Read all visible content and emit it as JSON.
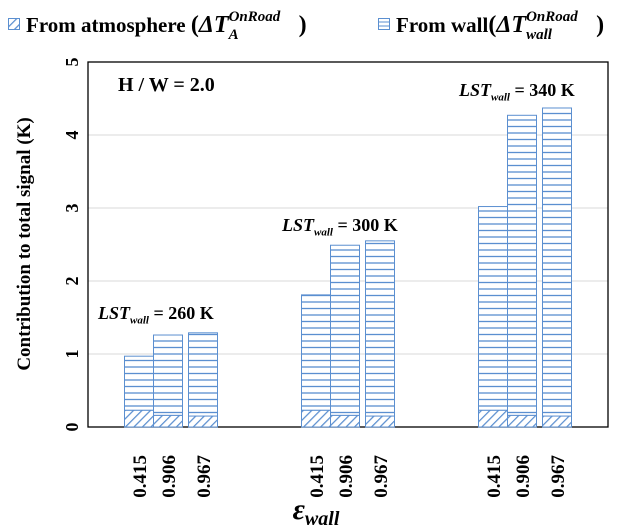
{
  "legend": {
    "atmosphere_label": "From atmosphere",
    "atmosphere_symbol": "ΔT",
    "atmosphere_sup": "OnRoad",
    "atmosphere_sub": "A",
    "wall_label": "From wall",
    "wall_symbol": "ΔT",
    "wall_sup": "OnRoad",
    "wall_sub": "wall"
  },
  "annotations": {
    "hw": "H / W = 2.0",
    "lst_prefix": "LST",
    "lst_sub": "wall",
    "groups": [
      " = 260 K",
      " = 300 K",
      " = 340 K"
    ]
  },
  "colors": {
    "bar_stroke": "#5b8fd0",
    "bar_fill": "#ffffff",
    "grid": "#d9d9d9"
  },
  "chart_data": {
    "type": "bar",
    "stacked": true,
    "title": "",
    "xlabel": "ε_wall",
    "ylabel": "Contribution  to total signal (K)",
    "ylim": [
      0,
      5
    ],
    "yticks": [
      "0",
      "1",
      "2",
      "3",
      "4",
      "5"
    ],
    "grid": true,
    "legend_position": "top",
    "groups": [
      "LST_wall = 260 K",
      "LST_wall = 300 K",
      "LST_wall = 340 K"
    ],
    "categories": [
      "0.415",
      "0.906",
      "0.967",
      "0.415",
      "0.906",
      "0.967",
      "0.415",
      "0.906",
      "0.967"
    ],
    "series": [
      {
        "name": "From atmosphere (ΔT_A^OnRoad)",
        "pattern": "diagonal-hatch",
        "values": [
          0.23,
          0.16,
          0.15,
          0.23,
          0.16,
          0.15,
          0.23,
          0.16,
          0.15
        ]
      },
      {
        "name": "From wall (ΔT_wall^OnRoad)",
        "pattern": "horizontal-lines",
        "values": [
          0.74,
          1.1,
          1.14,
          1.58,
          2.33,
          2.4,
          2.79,
          4.11,
          4.22
        ]
      }
    ]
  }
}
